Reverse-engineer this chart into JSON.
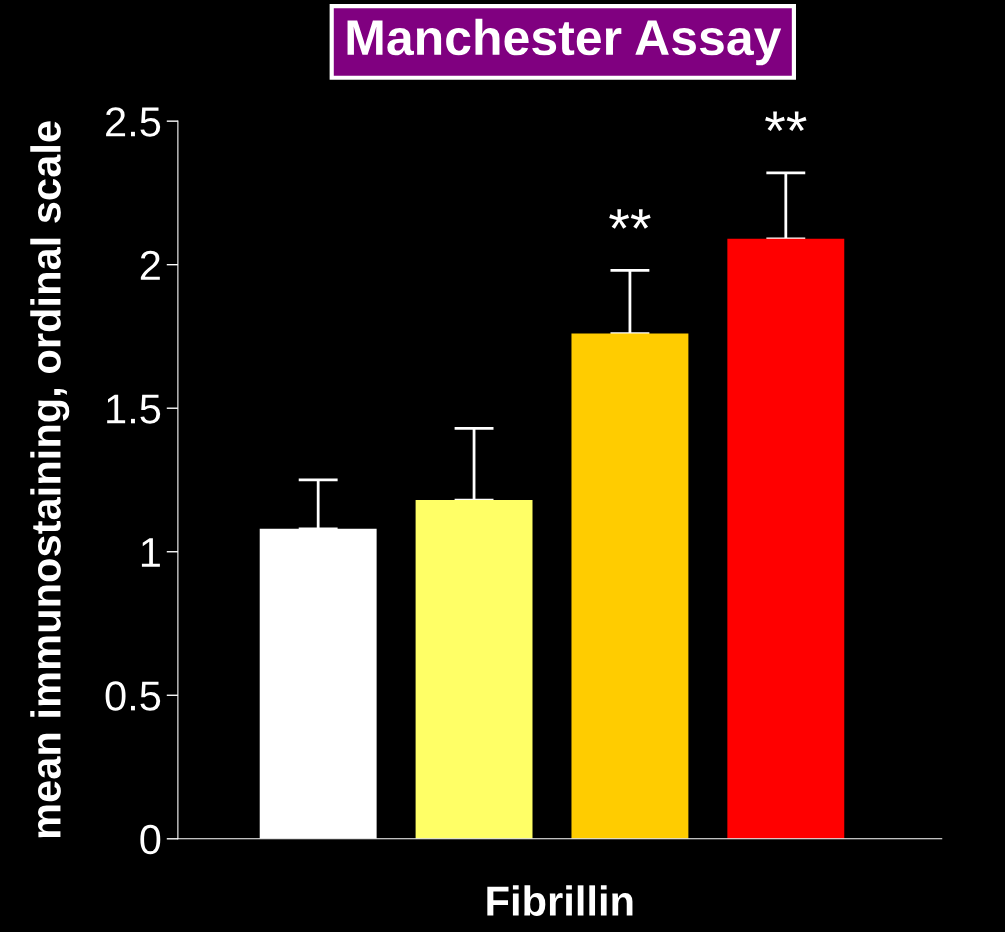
{
  "chart_data": {
    "type": "bar",
    "title": "Manchester Assay",
    "xlabel": "Fibrillin",
    "ylabel": "mean immunostaining, ordinal scale",
    "categories": [
      null,
      null,
      null,
      null
    ],
    "values": [
      1.08,
      1.18,
      1.76,
      2.09
    ],
    "colors": [
      "#ffffff",
      "#ffff66",
      "#ffcc00",
      "#ff0000"
    ],
    "errors": [
      [
        1.08,
        1.25
      ],
      [
        1.18,
        1.43
      ],
      [
        1.76,
        1.98
      ],
      [
        2.09,
        2.32
      ]
    ],
    "value_labels": [
      null,
      null,
      "**",
      "**"
    ],
    "ylim": [
      0,
      2.5
    ],
    "yticks": [
      0,
      0.5,
      1,
      1.5,
      2,
      2.5
    ],
    "grid": false
  }
}
